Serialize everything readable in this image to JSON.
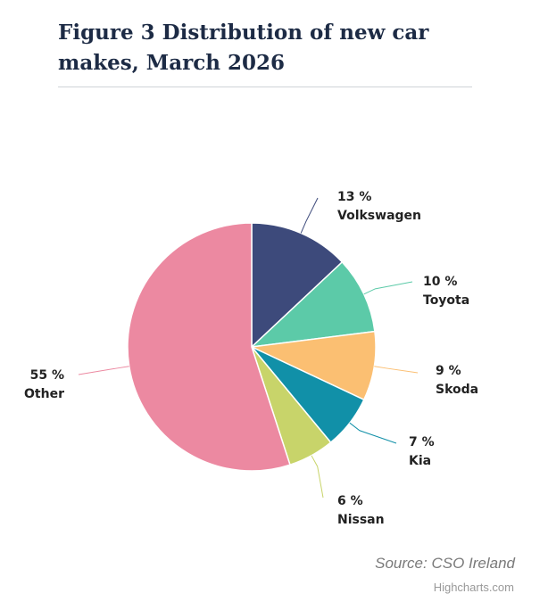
{
  "chart_data": {
    "type": "pie",
    "title": "Figure 3 Distribution of new car makes, March 2026",
    "unit": "%",
    "slices": [
      {
        "name": "Volkswagen",
        "value": 13,
        "label": "13 %",
        "color": "#3d4a7b"
      },
      {
        "name": "Toyota",
        "value": 10,
        "label": "10 %",
        "color": "#5ccaa8"
      },
      {
        "name": "Skoda",
        "value": 9,
        "label": "9 %",
        "color": "#fbbf72"
      },
      {
        "name": "Kia",
        "value": 7,
        "label": "7 %",
        "color": "#1190a8"
      },
      {
        "name": "Nissan",
        "value": 6,
        "label": "6 %",
        "color": "#c8d46a"
      },
      {
        "name": "Other",
        "value": 55,
        "label": "55 %",
        "color": "#ec89a1"
      }
    ],
    "start_angle": "top, clockwise",
    "source": "Source: CSO Ireland",
    "credits": "Highcharts.com"
  }
}
